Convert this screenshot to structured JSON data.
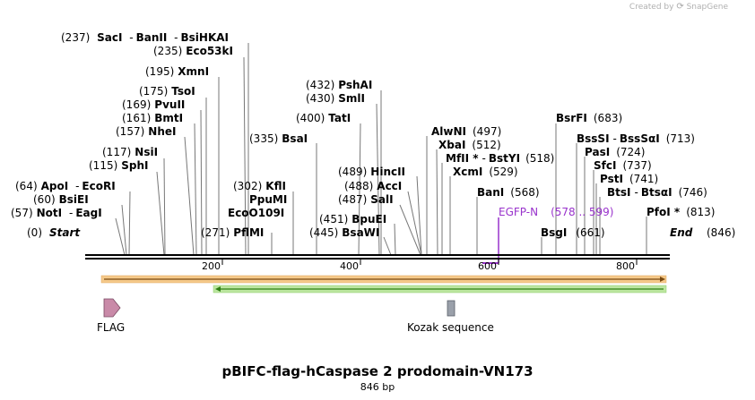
{
  "credit": {
    "prefix": "Created by",
    "brand": "SnapGene"
  },
  "plasmid": {
    "name": "pBIFC-flag-hCaspase 2 prodomain-VN173",
    "length_label": "846 bp",
    "length": 846
  },
  "ruler": {
    "ticks": [
      200,
      400,
      600,
      800
    ]
  },
  "ends": {
    "start_label": "Start",
    "start_pos": "(0)",
    "end_label": "End",
    "end_pos": "(846)"
  },
  "sites": [
    {
      "pos": 237,
      "pos_label": "(237)",
      "name": "SacI",
      "sep": ""
    },
    {
      "pos": 235,
      "pos_label": "(235)",
      "name": "Eco53kI",
      "sep": ""
    },
    {
      "pos": 195,
      "pos_label": "(195)",
      "name": "XmnI",
      "sep": ""
    },
    {
      "pos": 175,
      "pos_label": "(175)",
      "name": "TsoI",
      "sep": ""
    },
    {
      "pos": 169,
      "pos_label": "(169)",
      "name": "PvuII",
      "sep": ""
    },
    {
      "pos": 161,
      "pos_label": "(161)",
      "name": "BmtI",
      "sep": ""
    },
    {
      "pos": 157,
      "pos_label": "(157)",
      "name": "NheI",
      "sep": ""
    },
    {
      "pos": 117,
      "pos_label": "(117)",
      "name": "NsiI",
      "sep": ""
    },
    {
      "pos": 115,
      "pos_label": "(115)",
      "name": "SphI",
      "sep": ""
    },
    {
      "pos": 64,
      "pos_label": "(64)",
      "name": "ApoI",
      "sep": ""
    },
    {
      "pos": 60,
      "pos_label": "(60)",
      "name": "BsiEI",
      "sep": ""
    },
    {
      "pos": 57,
      "pos_label": "(57)",
      "name": "NotI",
      "sep": ""
    },
    {
      "pos": 335,
      "pos_label": "(335)",
      "name": "BsaI",
      "sep": ""
    },
    {
      "pos": 302,
      "pos_label": "(302)",
      "name": "KflI",
      "sep": ""
    },
    {
      "pos": 271,
      "pos_label": "(271)",
      "name": "PflMI",
      "sep": ""
    },
    {
      "pos": 432,
      "pos_label": "(432)",
      "name": "PshAI",
      "sep": ""
    },
    {
      "pos": 430,
      "pos_label": "(430)",
      "name": "SmlI",
      "sep": ""
    },
    {
      "pos": 400,
      "pos_label": "(400)",
      "name": "TatI",
      "sep": ""
    },
    {
      "pos": 489,
      "pos_label": "(489)",
      "name": "HincII",
      "sep": ""
    },
    {
      "pos": 488,
      "pos_label": "(488)",
      "name": "AccI",
      "sep": ""
    },
    {
      "pos": 487,
      "pos_label": "(487)",
      "name": "SalI",
      "sep": ""
    },
    {
      "pos": 451,
      "pos_label": "(451)",
      "name": "BpuEI",
      "sep": ""
    },
    {
      "pos": 445,
      "pos_label": "(445)",
      "name": "BsaWI",
      "sep": ""
    },
    {
      "pos": 497,
      "pos_label": "(497)",
      "name": "AlwNI",
      "sep": ""
    },
    {
      "pos": 512,
      "pos_label": "(512)",
      "name": "XbaI",
      "sep": ""
    },
    {
      "pos": 518,
      "pos_label": "(518)",
      "name": "MfII",
      "sep": ""
    },
    {
      "pos": 529,
      "pos_label": "(529)",
      "name": "XcmI",
      "sep": ""
    },
    {
      "pos": 568,
      "pos_label": "(568)",
      "name": "BanI",
      "sep": ""
    },
    {
      "pos": 683,
      "pos_label": "(683)",
      "name": "BsrFI",
      "sep": ""
    },
    {
      "pos": 713,
      "pos_label": "(713)",
      "name": "BssSI",
      "sep": ""
    },
    {
      "pos": 724,
      "pos_label": "(724)",
      "name": "PasI",
      "sep": ""
    },
    {
      "pos": 737,
      "pos_label": "(737)",
      "name": "SfcI",
      "sep": ""
    },
    {
      "pos": 741,
      "pos_label": "(741)",
      "name": "PstI",
      "sep": ""
    },
    {
      "pos": 746,
      "pos_label": "(746)",
      "name": "BtsI",
      "sep": ""
    },
    {
      "pos": 813,
      "pos_label": "(813)",
      "name": "PfoI",
      "sep": ""
    },
    {
      "pos": 661,
      "pos_label": "(661)",
      "name": "BsgI",
      "sep": ""
    }
  ],
  "labels": {
    "sacI_group": {
      "pos": "(237)",
      "a": "SacI",
      "b": "BanII",
      "c": "BsiHKAI"
    },
    "eco53ki": {
      "pos": "(235)",
      "a": "Eco53kI"
    },
    "xmni": {
      "pos": "(195)",
      "a": "XmnI"
    },
    "tsoi": {
      "pos": "(175)",
      "a": "TsoI"
    },
    "pvuii": {
      "pos": "(169)",
      "a": "PvuII"
    },
    "bmti": {
      "pos": "(161)",
      "a": "BmtI"
    },
    "nhei": {
      "pos": "(157)",
      "a": "NheI"
    },
    "nsii": {
      "pos": "(117)",
      "a": "NsiI"
    },
    "sphi": {
      "pos": "(115)",
      "a": "SphI"
    },
    "apoi": {
      "pos": "(64)",
      "a": "ApoI",
      "b": "EcoRI"
    },
    "bsiei": {
      "pos": "(60)",
      "a": "BsiEI"
    },
    "noti": {
      "pos": "(57)",
      "a": "NotI",
      "b": "EagI"
    },
    "bsai": {
      "pos": "(335)",
      "a": "BsaI"
    },
    "kfli": {
      "pos": "(302)",
      "a": "KflI",
      "b": "PpuMI",
      "c": "EcoO109I"
    },
    "pflmi": {
      "pos": "(271)",
      "a": "PflMI"
    },
    "pshai": {
      "pos": "(432)",
      "a": "PshAI"
    },
    "smli": {
      "pos": "(430)",
      "a": "SmlI"
    },
    "tati": {
      "pos": "(400)",
      "a": "TatI"
    },
    "hincii": {
      "pos": "(489)",
      "a": "HincII"
    },
    "acci": {
      "pos": "(488)",
      "a": "AccI"
    },
    "sali": {
      "pos": "(487)",
      "a": "SalI"
    },
    "bpuei": {
      "pos": "(451)",
      "a": "BpuEI"
    },
    "bsawi": {
      "pos": "(445)",
      "a": "BsaWI"
    },
    "alwni": {
      "pos": "(497)",
      "a": "AlwNI"
    },
    "xbai": {
      "pos": "(512)",
      "a": "XbaI"
    },
    "mfli": {
      "pos": "(518)",
      "a": "MfII *",
      "b": "BstYI"
    },
    "xcmi": {
      "pos": "(529)",
      "a": "XcmI"
    },
    "bani": {
      "pos": "(568)",
      "a": "BanI"
    },
    "bsrfi": {
      "pos": "(683)",
      "a": "BsrFI"
    },
    "bsssi": {
      "pos": "(713)",
      "a": "BssSI",
      "b": "BssSαI"
    },
    "pasi": {
      "pos": "(724)",
      "a": "PasI"
    },
    "sfci": {
      "pos": "(737)",
      "a": "SfcI"
    },
    "psti": {
      "pos": "(741)",
      "a": "PstI"
    },
    "btsi": {
      "pos": "(746)",
      "a": "BtsI",
      "b": "BtsαI"
    },
    "pfoi": {
      "pos": "(813)",
      "a": "PfoI *"
    },
    "bsgi": {
      "pos": "(661)",
      "a": "BsgI"
    },
    "egfp": {
      "name": "EGFP-N",
      "range": "(578 .. 599)"
    }
  },
  "features": {
    "flag": "FLAG",
    "kozak": "Kozak sequence"
  },
  "colors": {
    "egfp": "#9933cc",
    "orange_arrow": "#f5c98a",
    "green_arrow": "#3a9a1a",
    "flag_fill": "#c98aa8",
    "kozak_fill": "#9aa0aa"
  }
}
